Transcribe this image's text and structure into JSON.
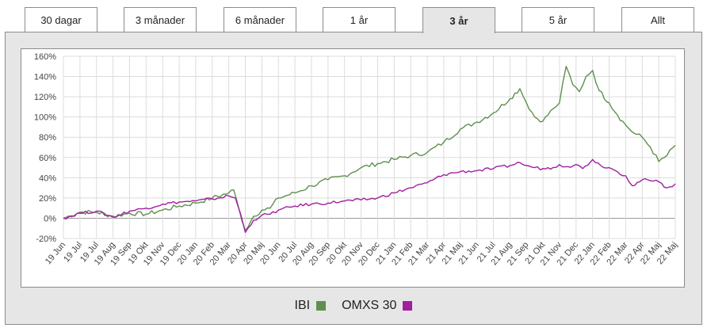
{
  "tabs": [
    {
      "label": "30 dagar",
      "active": false
    },
    {
      "label": "3 månader",
      "active": false
    },
    {
      "label": "6 månader",
      "active": false
    },
    {
      "label": "1 år",
      "active": false
    },
    {
      "label": "3 år",
      "active": true
    },
    {
      "label": "5 år",
      "active": false
    },
    {
      "label": "Allt",
      "active": false
    }
  ],
  "legend": [
    {
      "label": "IBI",
      "color": "#5f8f4f"
    },
    {
      "label": "OMXS 30",
      "color": "#a020a0"
    }
  ],
  "chart_data": {
    "type": "line",
    "title": "",
    "xlabel": "",
    "ylabel": "",
    "ylim": [
      -20,
      160
    ],
    "yticks": [
      -20,
      0,
      20,
      40,
      60,
      80,
      100,
      120,
      140,
      160
    ],
    "ytick_labels": [
      "-20%",
      "0%",
      "20%",
      "40%",
      "60%",
      "80%",
      "100%",
      "120%",
      "140%",
      "160%"
    ],
    "x_ticks": [
      "19 Jun",
      "19 Jul",
      "19 Jul",
      "19 Aug",
      "19 Sep",
      "19 Okt",
      "19 Nov",
      "19 Dec",
      "20 Jan",
      "20 Feb",
      "20 Mar",
      "20 Apr",
      "20 Maj",
      "20 Jun",
      "20 Jul",
      "20 Aug",
      "20 Sep",
      "20 Okt",
      "20 Nov",
      "20 Dec",
      "21 Jan",
      "21 Feb",
      "21 Mar",
      "21 Apr",
      "21 Maj",
      "21 Jun",
      "21 Jul",
      "21 Aug",
      "21 Sep",
      "21 Okt",
      "21 Nov",
      "21 Dec",
      "22 Jan",
      "22 Feb",
      "22 Mar",
      "22 Apr",
      "22 Maj",
      "22 Maj"
    ],
    "grid": true,
    "legend_position": "bottom",
    "series": [
      {
        "name": "IBI",
        "color": "#5f8f4f",
        "points": [
          [
            0,
            0
          ],
          [
            1,
            6
          ],
          [
            2,
            6
          ],
          [
            3,
            2
          ],
          [
            4,
            5
          ],
          [
            5,
            4
          ],
          [
            6,
            8
          ],
          [
            7,
            12
          ],
          [
            8,
            15
          ],
          [
            9,
            20
          ],
          [
            10,
            25
          ],
          [
            10.3,
            28
          ],
          [
            10.6,
            10
          ],
          [
            11,
            -12
          ],
          [
            11.5,
            2
          ],
          [
            12,
            8
          ],
          [
            12.5,
            10
          ],
          [
            13,
            20
          ],
          [
            14,
            25
          ],
          [
            15,
            32
          ],
          [
            16,
            38
          ],
          [
            17,
            42
          ],
          [
            18,
            50
          ],
          [
            19,
            54
          ],
          [
            20,
            58
          ],
          [
            21,
            62
          ],
          [
            22,
            65
          ],
          [
            23,
            75
          ],
          [
            24,
            88
          ],
          [
            25,
            95
          ],
          [
            26,
            104
          ],
          [
            27,
            118
          ],
          [
            27.6,
            128
          ],
          [
            28,
            114
          ],
          [
            28.5,
            100
          ],
          [
            29,
            96
          ],
          [
            29.6,
            108
          ],
          [
            30,
            114
          ],
          [
            30.4,
            150
          ],
          [
            30.8,
            132
          ],
          [
            31.2,
            125
          ],
          [
            31.6,
            140
          ],
          [
            32,
            146
          ],
          [
            32.4,
            126
          ],
          [
            33,
            114
          ],
          [
            33.5,
            102
          ],
          [
            34,
            92
          ],
          [
            34.5,
            84
          ],
          [
            35,
            80
          ],
          [
            35.5,
            70
          ],
          [
            36,
            56
          ],
          [
            36.5,
            62
          ],
          [
            37,
            72
          ]
        ]
      },
      {
        "name": "OMXS 30",
        "color": "#a020a0",
        "points": [
          [
            0,
            0
          ],
          [
            1,
            5
          ],
          [
            2,
            7
          ],
          [
            3,
            1
          ],
          [
            4,
            7
          ],
          [
            5,
            10
          ],
          [
            6,
            14
          ],
          [
            7,
            16
          ],
          [
            8,
            17
          ],
          [
            9,
            19
          ],
          [
            10,
            22
          ],
          [
            10.4,
            20
          ],
          [
            10.7,
            5
          ],
          [
            11,
            -14
          ],
          [
            11.5,
            -2
          ],
          [
            12,
            3
          ],
          [
            12.5,
            4
          ],
          [
            13,
            8
          ],
          [
            14,
            12
          ],
          [
            15,
            14
          ],
          [
            16,
            15
          ],
          [
            17,
            17
          ],
          [
            18,
            18
          ],
          [
            19,
            20
          ],
          [
            20,
            25
          ],
          [
            21,
            30
          ],
          [
            22,
            35
          ],
          [
            23,
            43
          ],
          [
            24,
            46
          ],
          [
            25,
            47
          ],
          [
            26,
            49
          ],
          [
            27,
            52
          ],
          [
            27.6,
            55
          ],
          [
            28,
            52
          ],
          [
            28.5,
            50
          ],
          [
            29,
            49
          ],
          [
            29.6,
            50
          ],
          [
            30,
            53
          ],
          [
            30.5,
            51
          ],
          [
            31,
            53
          ],
          [
            31.4,
            49
          ],
          [
            32,
            58
          ],
          [
            32.5,
            52
          ],
          [
            33,
            50
          ],
          [
            33.5,
            46
          ],
          [
            34,
            42
          ],
          [
            34.4,
            32
          ],
          [
            35,
            38
          ],
          [
            35.5,
            37
          ],
          [
            36,
            36
          ],
          [
            36.5,
            30
          ],
          [
            37,
            34
          ]
        ]
      }
    ]
  }
}
